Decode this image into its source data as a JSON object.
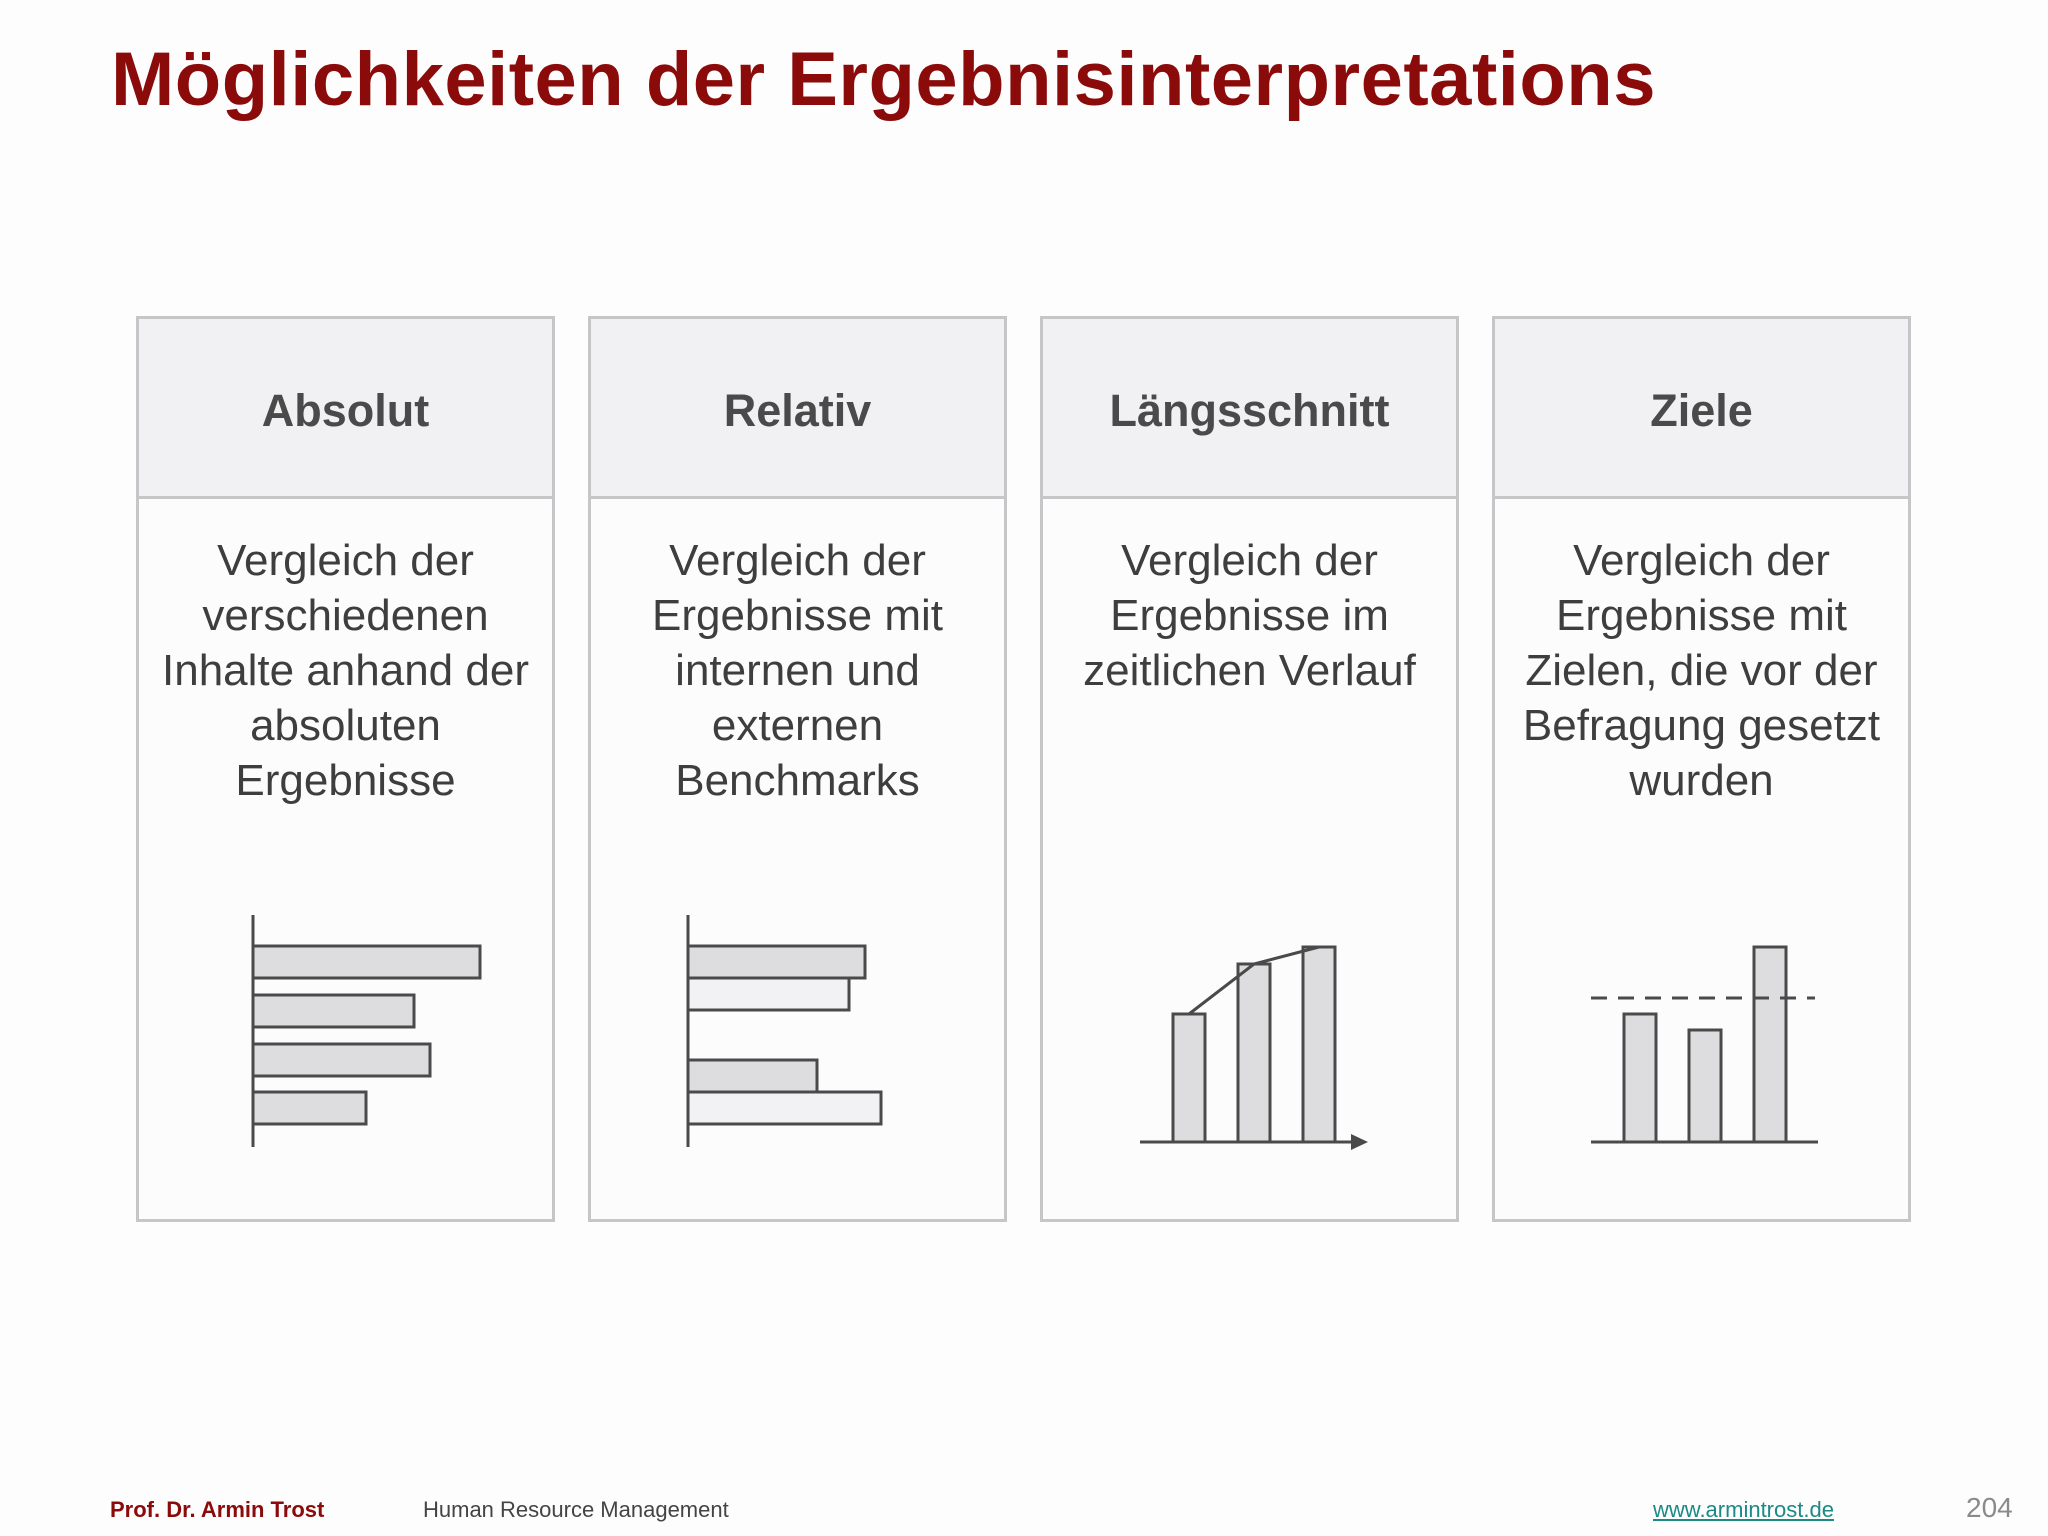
{
  "title": "Möglichkeiten der Ergebnisinterpretations",
  "cards": [
    {
      "title": "Absolut",
      "description": "Vergleich der verschiedenen Inhalte anhand der absoluten Ergebnisse",
      "icon": "horizontal-bar-chart-icon"
    },
    {
      "title": "Relativ",
      "description": "Vergleich der Ergebnisse mit internen und externen Benchmarks",
      "icon": "paired-bar-chart-icon"
    },
    {
      "title": "Längsschnitt",
      "description": "Vergleich der Ergebnisse im zeitlichen Verlauf",
      "icon": "trend-bar-chart-icon"
    },
    {
      "title": "Ziele",
      "description": "Vergleich der Ergebnisse mit Zielen, die vor der Befragung gesetzt wurden",
      "icon": "target-bar-chart-icon"
    }
  ],
  "footer": {
    "author": "Prof. Dr. Armin Trost",
    "course": "Human Resource Management",
    "website": "www.armintrost.de",
    "page_number": "204"
  },
  "colors": {
    "title": "#8b0a0a",
    "card_border": "#c6c6c9",
    "header_background": "#f1f1f3",
    "bar_fill": "#dddde0",
    "bar_stroke": "#4a4a4a",
    "link": "#1a8a86"
  }
}
